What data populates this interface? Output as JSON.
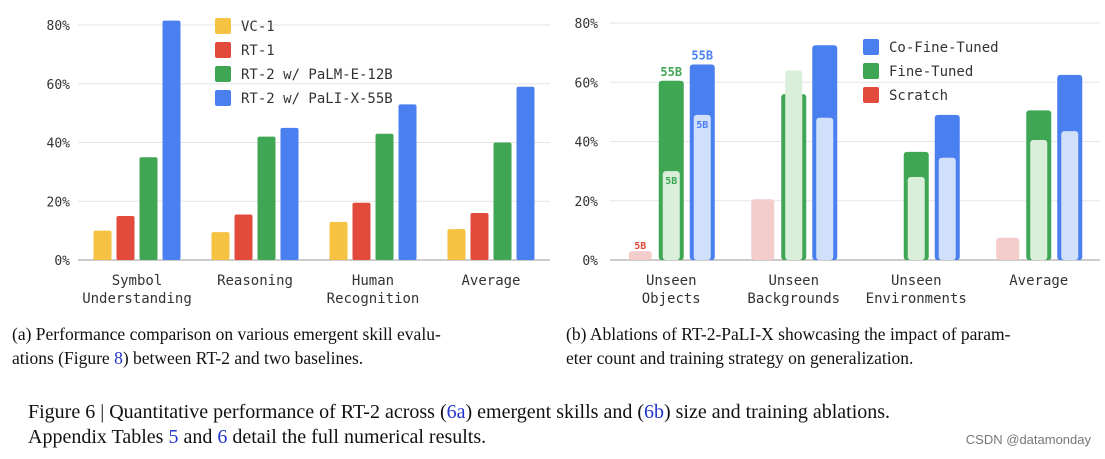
{
  "chart_data": [
    {
      "id": "a",
      "type": "bar",
      "categories": [
        [
          "Symbol",
          "Understanding"
        ],
        [
          "Reasoning"
        ],
        [
          "Human",
          "Recognition"
        ],
        [
          "Average"
        ]
      ],
      "series": [
        {
          "name": "VC-1",
          "color": "#f5c242",
          "values": [
            10,
            9.5,
            13,
            10.5
          ]
        },
        {
          "name": "RT-1",
          "color": "#e24a3b",
          "values": [
            15,
            15.5,
            19.5,
            16
          ]
        },
        {
          "name": "RT-2 w/ PaLM-E-12B",
          "color": "#3fa653",
          "values": [
            35,
            42,
            43,
            40
          ]
        },
        {
          "name": "RT-2 w/ PaLI-X-55B",
          "color": "#4a7ff0",
          "values": [
            81.5,
            45,
            53,
            59
          ]
        }
      ],
      "yticks": [
        "0%",
        "20%",
        "40%",
        "60%",
        "80%"
      ],
      "ylim": [
        0,
        80
      ],
      "legend": "top-left"
    },
    {
      "id": "b",
      "type": "bar",
      "categories": [
        [
          "Unseen",
          "Objects"
        ],
        [
          "Unseen",
          "Backgrounds"
        ],
        [
          "Unseen",
          "Environments"
        ],
        [
          "Average"
        ]
      ],
      "series": [
        {
          "name": "Co-Fine-Tuned",
          "color": "#4a7ff0",
          "light_color": "#d0e0fb",
          "values_55b": [
            66,
            72.5,
            49,
            62.5
          ],
          "values_5b": [
            49,
            48,
            34.5,
            43.5
          ]
        },
        {
          "name": "Fine-Tuned",
          "color": "#3fa653",
          "light_color": "#d9efd9",
          "values_55b": [
            60.5,
            56,
            36.5,
            50.5
          ],
          "values_5b": [
            30,
            64,
            28,
            40.5
          ]
        },
        {
          "name": "Scratch",
          "color": "#e24a3b",
          "light_color": "#f3cccc",
          "values_55b": [
            null,
            null,
            null,
            null
          ],
          "values_5b": [
            3,
            20.5,
            0,
            7.5
          ]
        }
      ],
      "annotations": {
        "big": "55B",
        "small": "5B"
      },
      "yticks": [
        "0%",
        "20%",
        "40%",
        "60%",
        "80%"
      ],
      "ylim": [
        0,
        80
      ],
      "legend": "top-right"
    }
  ],
  "captions": {
    "a_line1": "(a) Performance comparison on various emergent skill evalu-",
    "a_line2_pre": "ations (Figure ",
    "a_line2_ref": "8",
    "a_line2_post": ") between RT-2 and two baselines.",
    "b_line1": "(b) Ablations of RT-2-PaLI-X showcasing the impact of param-",
    "b_line2": "eter count and training strategy on generalization.",
    "fig_pre": "Figure 6 | Quantitative performance of RT-2 across (",
    "fig_ref1": "6a",
    "fig_mid1": ") emergent skills and (",
    "fig_ref2": "6b",
    "fig_mid2": ") size and training ablations.",
    "fig_line2_pre": "Appendix Tables ",
    "fig_ref3": "5",
    "fig_mid3": " and ",
    "fig_ref4": "6",
    "fig_line2_post": " detail the full numerical results."
  },
  "watermark": "CSDN @datamonday"
}
